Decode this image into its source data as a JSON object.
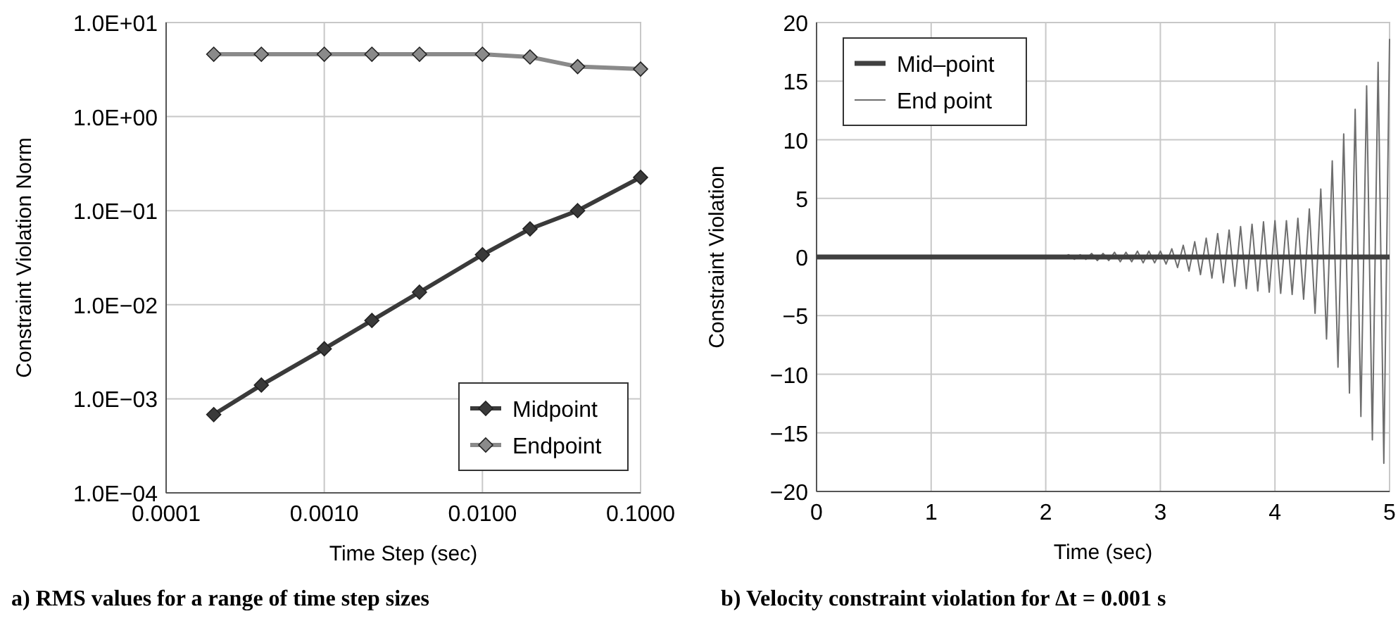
{
  "chart_data": [
    {
      "type": "line",
      "title": "a) RMS values for a range of time step sizes",
      "xlabel": "Time Step (sec)",
      "ylabel": "Constraint Violation Norm",
      "log": "xy",
      "grid": true,
      "legend": "bottom right",
      "marker": "diamond",
      "line_style": "solid",
      "xlim": [
        0.0001,
        0.1
      ],
      "xticks": [
        {
          "value": 0.0001,
          "label": "0.0001"
        },
        {
          "value": 0.001,
          "label": "0.0010"
        },
        {
          "value": 0.01,
          "label": "0.0100"
        },
        {
          "value": 0.1,
          "label": "0.1000"
        }
      ],
      "ylim": [
        0.0001,
        10
      ],
      "yticks": [
        {
          "value": 0.0001,
          "label": "1.0E−04"
        },
        {
          "value": 0.001,
          "label": "1.0E−03"
        },
        {
          "value": 0.01,
          "label": "1.0E−02"
        },
        {
          "value": 0.1,
          "label": "1.0E−01"
        },
        {
          "value": 1,
          "label": "1.0E+00"
        },
        {
          "value": 10,
          "label": "1.0E+01"
        }
      ],
      "x": [
        0.0002,
        0.0004,
        0.001,
        0.002,
        0.004,
        0.01,
        0.02,
        0.04,
        0.1
      ],
      "series": [
        {
          "name": "Midpoint",
          "color": "#3a3a3a",
          "values": [
            0.00068,
            0.0014,
            0.0034,
            0.0068,
            0.0136,
            0.034,
            0.064,
            0.1,
            0.226
          ]
        },
        {
          "name": "Endpoint",
          "color": "#8a8a8a",
          "values": [
            4.6,
            4.6,
            4.6,
            4.6,
            4.6,
            4.6,
            4.3,
            3.4,
            3.2
          ]
        }
      ]
    },
    {
      "type": "line",
      "title": "b) Velocity constraint violation for Δt = 0.001 s",
      "xlabel": "Time (sec)",
      "ylabel": "Constraint Violation",
      "grid": true,
      "legend": "top left",
      "marker": "none",
      "line_style": "solid",
      "xlim": [
        0,
        5
      ],
      "xticks": [
        0,
        1,
        2,
        3,
        4,
        5
      ],
      "ylim": [
        -20,
        20
      ],
      "yticks": [
        {
          "value": -20,
          "label": "−20"
        },
        {
          "value": -15,
          "label": "−15"
        },
        {
          "value": -10,
          "label": "−10"
        },
        {
          "value": -5,
          "label": "−5"
        },
        0,
        5,
        10,
        15,
        20
      ],
      "series": [
        {
          "name": "Mid–point",
          "color": "#404040",
          "x": [
            0,
            5
          ],
          "values": [
            0,
            0
          ]
        },
        {
          "name": "End point",
          "color": "#6e6e6e",
          "x": [
            0,
            1,
            2.0,
            2.05,
            2.1,
            2.15,
            2.2,
            2.25,
            2.3,
            2.35,
            2.4,
            2.45,
            2.5,
            2.55,
            2.6,
            2.65,
            2.7,
            2.75,
            2.8,
            2.85,
            2.9,
            2.95,
            3.0,
            3.05,
            3.1,
            3.15,
            3.2,
            3.25,
            3.3,
            3.35,
            3.4,
            3.45,
            3.5,
            3.55,
            3.6,
            3.65,
            3.7,
            3.75,
            3.8,
            3.85,
            3.9,
            3.95,
            4.0,
            4.05,
            4.1,
            4.15,
            4.2,
            4.25,
            4.3,
            4.35,
            4.4,
            4.45,
            4.5,
            4.55,
            4.6,
            4.65,
            4.7,
            4.75,
            4.8,
            4.85,
            4.9,
            4.95,
            5.0
          ],
          "values": [
            0,
            0,
            0.1,
            -0.1,
            0.1,
            -0.1,
            0.2,
            -0.2,
            0.2,
            -0.2,
            0.3,
            -0.3,
            0.3,
            -0.3,
            0.4,
            -0.4,
            0.4,
            -0.4,
            0.5,
            -0.5,
            0.5,
            -0.5,
            0.5,
            -0.6,
            0.7,
            -0.9,
            1.0,
            -1.2,
            1.3,
            -1.5,
            1.6,
            -1.8,
            2.0,
            -2.2,
            2.3,
            -2.5,
            2.6,
            -2.7,
            2.8,
            -2.9,
            3.0,
            -3.0,
            3.1,
            -3.1,
            3.1,
            -3.2,
            3.3,
            -3.6,
            4.1,
            -4.8,
            5.8,
            -7.0,
            8.2,
            -9.4,
            10.5,
            -11.6,
            12.6,
            -13.6,
            14.6,
            -15.6,
            16.6,
            -17.6,
            18.6
          ]
        }
      ]
    }
  ]
}
